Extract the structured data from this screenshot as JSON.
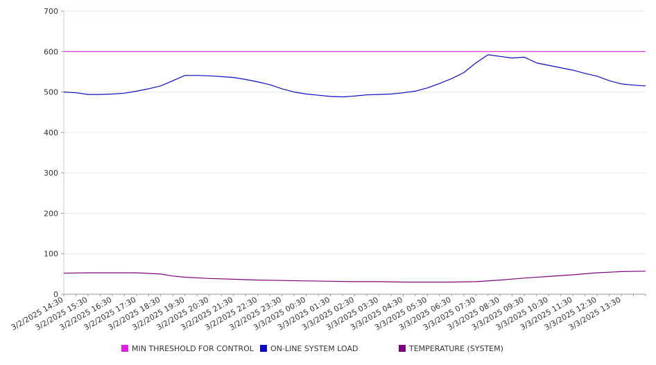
{
  "chart_data": {
    "type": "line",
    "ylim": [
      0,
      700
    ],
    "yticks": [
      0,
      100,
      200,
      300,
      400,
      500,
      600,
      700
    ],
    "xlim": [
      "3/2/2025 14:30",
      "3/3/2025 14:30"
    ],
    "grid": "horizontal",
    "legend_position": "bottom",
    "categories": [
      "3/2/2025 14:30",
      "3/2/2025 15:30",
      "3/2/2025 16:30",
      "3/2/2025 17:30",
      "3/2/2025 18:30",
      "3/2/2025 19:30",
      "3/2/2025 20:30",
      "3/2/2025 21:30",
      "3/2/2025 22:30",
      "3/2/2025 23:30",
      "3/3/2025 00:30",
      "3/3/2025 01:30",
      "3/3/2025 02:30",
      "3/3/2025 03:30",
      "3/3/2025 04:30",
      "3/3/2025 05:30",
      "3/3/2025 06:30",
      "3/3/2025 07:30",
      "3/3/2025 08:30",
      "3/3/2025 09:30",
      "3/3/2025 10:30",
      "3/3/2025 11:30",
      "3/3/2025 12:30",
      "3/3/2025 13:30"
    ],
    "series": [
      {
        "name": "MIN THRESHOLD FOR CONTROL",
        "color": "#e020e0",
        "x": [
          "3/2/2025 14:30",
          "3/3/2025 14:30"
        ],
        "values": [
          600,
          600
        ]
      },
      {
        "name": "ON-LINE SYSTEM LOAD",
        "color": "#0a0ac8",
        "x": [
          "3/2/2025 14:30",
          "3/2/2025 15:00",
          "3/2/2025 15:30",
          "3/2/2025 16:00",
          "3/2/2025 16:30",
          "3/2/2025 17:00",
          "3/2/2025 17:30",
          "3/2/2025 18:00",
          "3/2/2025 18:30",
          "3/2/2025 19:00",
          "3/2/2025 19:30",
          "3/2/2025 20:00",
          "3/2/2025 20:30",
          "3/2/2025 21:00",
          "3/2/2025 21:30",
          "3/2/2025 22:00",
          "3/2/2025 22:30",
          "3/2/2025 23:00",
          "3/2/2025 23:30",
          "3/3/2025 00:00",
          "3/3/2025 00:30",
          "3/3/2025 01:00",
          "3/3/2025 01:30",
          "3/3/2025 02:00",
          "3/3/2025 02:30",
          "3/3/2025 03:00",
          "3/3/2025 03:30",
          "3/3/2025 04:00",
          "3/3/2025 04:30",
          "3/3/2025 05:00",
          "3/3/2025 05:30",
          "3/3/2025 06:00",
          "3/3/2025 06:30",
          "3/3/2025 07:00",
          "3/3/2025 07:30",
          "3/3/2025 08:00",
          "3/3/2025 08:30",
          "3/3/2025 09:00",
          "3/3/2025 09:30",
          "3/3/2025 10:00",
          "3/3/2025 10:30",
          "3/3/2025 11:00",
          "3/3/2025 11:30",
          "3/3/2025 12:00",
          "3/3/2025 12:30",
          "3/3/2025 13:00",
          "3/3/2025 13:30",
          "3/3/2025 14:00",
          "3/3/2025 14:30"
        ],
        "values": [
          500,
          498,
          494,
          494,
          495,
          497,
          502,
          508,
          515,
          528,
          541,
          541,
          540,
          538,
          536,
          531,
          525,
          518,
          508,
          500,
          495,
          492,
          489,
          488,
          490,
          493,
          494,
          495,
          498,
          502,
          510,
          521,
          533,
          548,
          572,
          592,
          588,
          584,
          586,
          572,
          566,
          560,
          554,
          546,
          539,
          528,
          520,
          517,
          515
        ]
      },
      {
        "name": "TEMPERATURE (SYSTEM)",
        "color": "#800080",
        "x": [
          "3/2/2025 14:30",
          "3/2/2025 15:30",
          "3/2/2025 16:30",
          "3/2/2025 17:30",
          "3/2/2025 18:30",
          "3/2/2025 19:00",
          "3/2/2025 19:30",
          "3/2/2025 20:30",
          "3/2/2025 21:30",
          "3/2/2025 22:30",
          "3/2/2025 23:30",
          "3/3/2025 00:30",
          "3/3/2025 01:30",
          "3/3/2025 02:30",
          "3/3/2025 03:30",
          "3/3/2025 04:30",
          "3/3/2025 05:30",
          "3/3/2025 06:30",
          "3/3/2025 07:30",
          "3/3/2025 08:30",
          "3/3/2025 09:30",
          "3/3/2025 10:30",
          "3/3/2025 11:30",
          "3/3/2025 12:30",
          "3/3/2025 13:30",
          "3/3/2025 14:30"
        ],
        "values": [
          52,
          53,
          53,
          53,
          50,
          45,
          42,
          39,
          37,
          35,
          34,
          33,
          32,
          31,
          31,
          30,
          30,
          30,
          31,
          35,
          40,
          44,
          48,
          53,
          56,
          57
        ]
      }
    ]
  }
}
